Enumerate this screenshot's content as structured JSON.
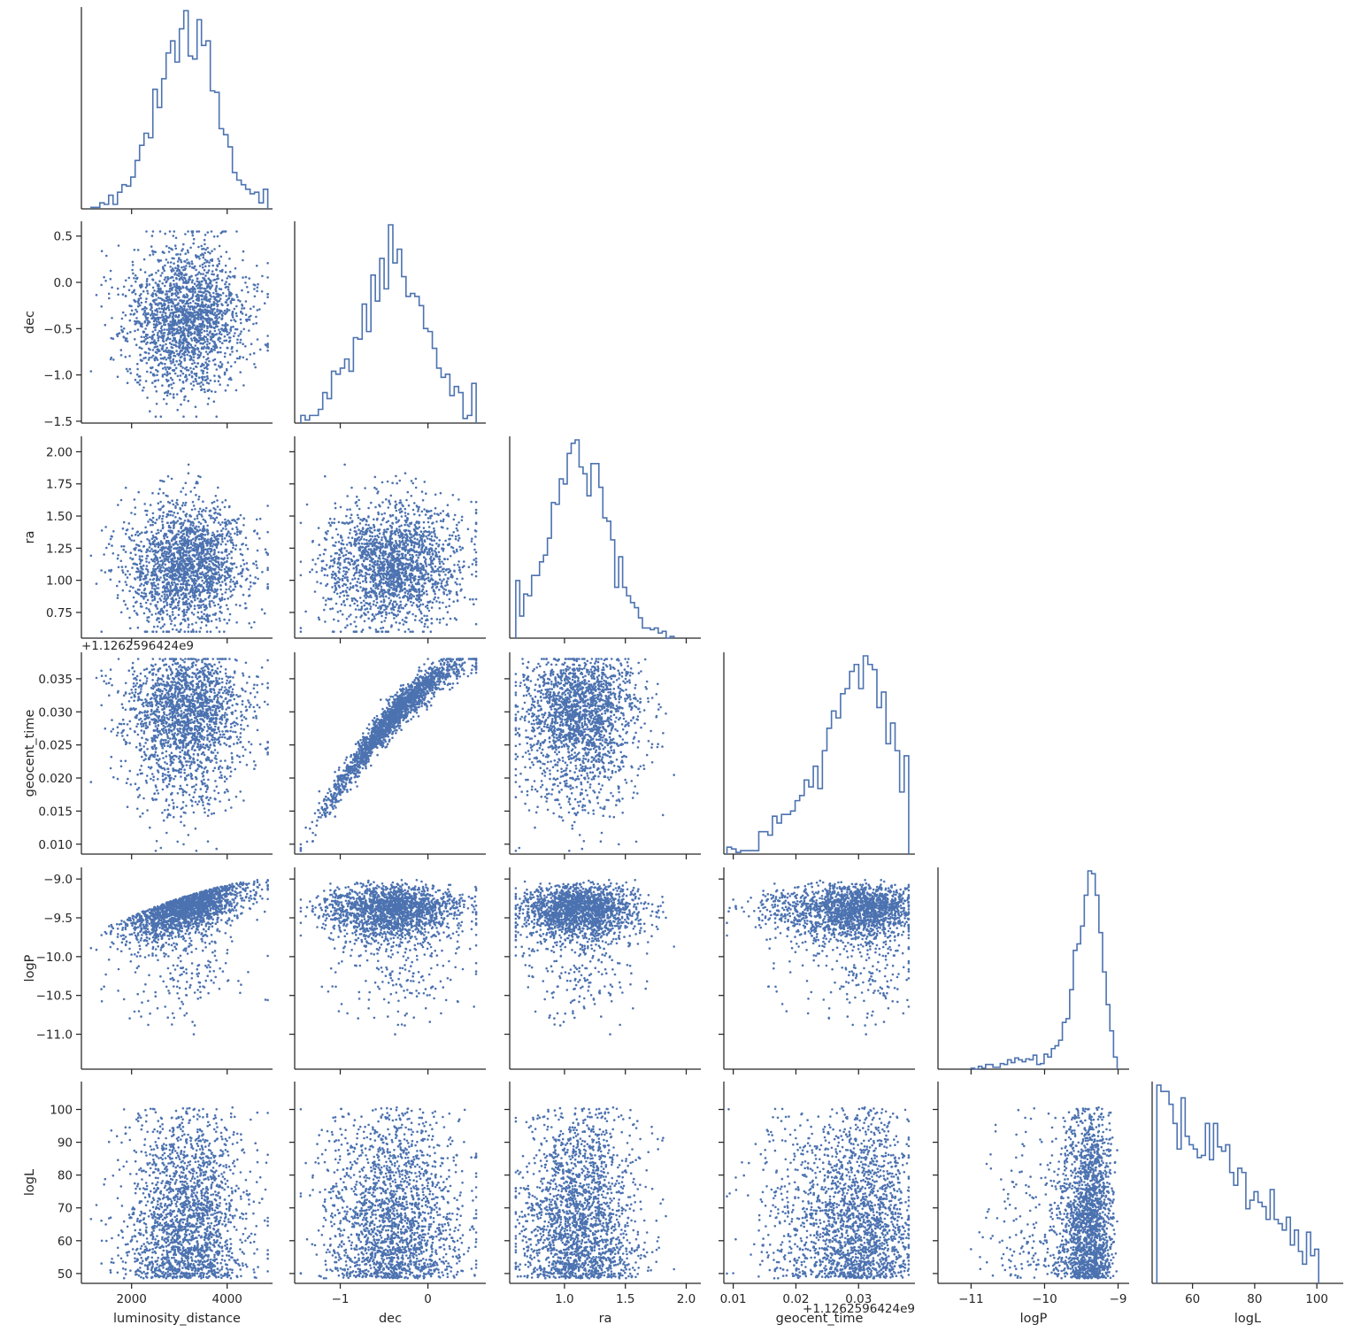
{
  "chart_data": {
    "type": "scatter",
    "kind": "corner pair plot (lower triangle scatter, diagonal step histograms)",
    "color": "#4c72b0",
    "grid": false,
    "variables": [
      {
        "name": "luminosity_distance",
        "label": "luminosity_distance",
        "lim": [
          950,
          4950
        ],
        "ticks": [
          2000,
          4000
        ],
        "tick_labels": [
          "2000",
          "4000"
        ],
        "dist": {
          "kind": "normal",
          "mean": 3150,
          "sd": 620,
          "min": 1150,
          "max": 4850
        }
      },
      {
        "name": "dec",
        "label": "dec",
        "lim": [
          -1.52,
          0.66
        ],
        "ticks": [
          -1.5,
          -1.0,
          -0.5,
          0.0,
          0.5
        ],
        "tick_labels": [
          "−1.5",
          "−1.0",
          "−0.5",
          "0.0",
          "0.5"
        ],
        "x_tick_labels": [
          "−1",
          "0"
        ],
        "x_ticks": [
          -1,
          0
        ],
        "dist": {
          "kind": "normal",
          "mean": -0.4,
          "sd": 0.38,
          "min": -1.45,
          "max": 0.55
        }
      },
      {
        "name": "ra",
        "label": "ra",
        "lim": [
          0.55,
          2.12
        ],
        "ticks": [
          0.75,
          1.0,
          1.25,
          1.5,
          1.75,
          2.0
        ],
        "tick_labels": [
          "0.75",
          "1.00",
          "1.25",
          "1.50",
          "1.75",
          "2.00"
        ],
        "x_ticks": [
          1.0,
          1.5,
          2.0
        ],
        "x_tick_labels": [
          "1.0",
          "1.5",
          "2.0"
        ],
        "dist": {
          "kind": "normal",
          "mean": 1.12,
          "sd": 0.26,
          "min": 0.6,
          "max": 2.06
        }
      },
      {
        "name": "geocent_time",
        "label": "geocent_time",
        "offset": "+1.1262596424e9",
        "lim": [
          0.0085,
          0.039
        ],
        "ticks": [
          0.01,
          0.015,
          0.02,
          0.025,
          0.03,
          0.035
        ],
        "tick_labels": [
          "0.010",
          "0.015",
          "0.020",
          "0.025",
          "0.030",
          "0.035"
        ],
        "x_ticks": [
          0.01,
          0.02,
          0.03
        ],
        "x_tick_labels": [
          "0.01",
          "0.02",
          "0.03"
        ],
        "dist": {
          "kind": "skewed",
          "mode": 0.033,
          "min": 0.009,
          "max": 0.038
        }
      },
      {
        "name": "logP",
        "label": "logP",
        "lim": [
          -11.45,
          -8.85
        ],
        "ticks": [
          -11.0,
          -10.5,
          -10.0,
          -9.5,
          -9.0
        ],
        "tick_labels": [
          "−11.0",
          "−10.5",
          "−10.0",
          "−9.5",
          "−9.0"
        ],
        "x_ticks": [
          -11,
          -10,
          -9
        ],
        "x_tick_labels": [
          "−11",
          "−10",
          "−9"
        ],
        "dist": {
          "kind": "skewed",
          "mode": -9.18,
          "min": -11.35,
          "max": -9.0
        }
      },
      {
        "name": "logL",
        "label": "logL",
        "lim": [
          47,
          108.5
        ],
        "ticks": [
          50,
          60,
          70,
          80,
          90,
          100
        ],
        "tick_labels": [
          "50",
          "60",
          "70",
          "80",
          "90",
          "100"
        ],
        "x_ticks": [
          60,
          80,
          100
        ],
        "x_tick_labels": [
          "60",
          "80",
          "100"
        ],
        "dist": {
          "kind": "decreasing",
          "min": 48.5,
          "max": 106.5
        }
      }
    ],
    "n_samples": 2000,
    "hist_bins": 40
  }
}
